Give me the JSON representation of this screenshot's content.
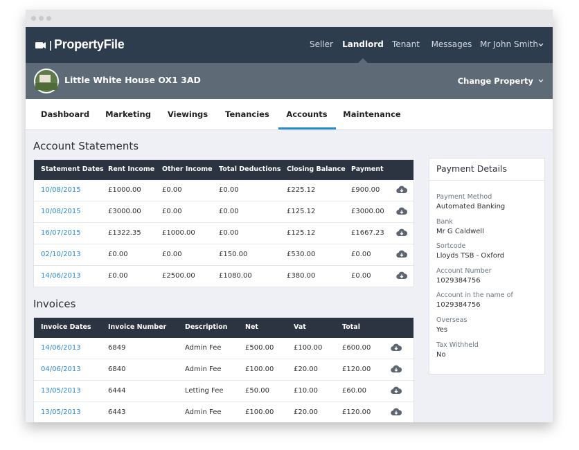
{
  "header": {
    "logo": "PropertyFile",
    "nav": [
      "Seller",
      "Landlord",
      "Tenant",
      "Messages"
    ],
    "user": "Mr John Smith"
  },
  "property": {
    "name": "Little White House OX1 3AD",
    "action": "Change Property"
  },
  "tabs": [
    "Dashboard",
    "Marketing",
    "Viewings",
    "Tenancies",
    "Accounts",
    "Maintenance"
  ],
  "statements": {
    "title": "Account Statements",
    "columns": [
      "Statement Dates",
      "Rent Income",
      "Other Income",
      "Total Deductions",
      "Closing Balance",
      "Payment"
    ],
    "rows": [
      [
        "10/08/2015",
        "£1000.00",
        "£0.00",
        "£0.00",
        "£225.12",
        "£900.00"
      ],
      [
        "10/08/2015",
        "£3000.00",
        "£0.00",
        "£0.00",
        "£125.12",
        "£3000.00"
      ],
      [
        "16/07/2015",
        "£1322.35",
        "£1000.00",
        "£0.00",
        "£125.12",
        "£1667.23"
      ],
      [
        "02/10/2013",
        "£0.00",
        "£0.00",
        "£150.00",
        "£530.00",
        "£0.00"
      ],
      [
        "14/06/2013",
        "£0.00",
        "£2500.00",
        "£1080.00",
        "£380.00",
        "£0.00"
      ]
    ]
  },
  "invoices": {
    "title": "Invoices",
    "columns": [
      "Invoice Dates",
      "Invoice Number",
      "Description",
      "Net",
      "Vat",
      "Total"
    ],
    "rows": [
      [
        "14/06/2013",
        "6849",
        "Admin Fee",
        "£500.00",
        "£100.00",
        "£600.00"
      ],
      [
        "04/06/2013",
        "6840",
        "Admin Fee",
        "£100.00",
        "£20.00",
        "£120.00"
      ],
      [
        "13/05/2013",
        "6444",
        "Letting Fee",
        "£50.00",
        "£10.00",
        "£60.00"
      ],
      [
        "13/05/2013",
        "6443",
        "Admin Fee",
        "£100.00",
        "£20.00",
        "£120.00"
      ]
    ]
  },
  "payment_details": {
    "title": "Payment Details",
    "fields": [
      {
        "label": "Payment Method",
        "value": "Automated Banking"
      },
      {
        "label": "Bank",
        "value": "Mr G Caldwell"
      },
      {
        "label": "Sortcode",
        "value": "Lloyds TSB - Oxford"
      },
      {
        "label": "Account Number",
        "value": "1029384756"
      },
      {
        "label": "Account in the name of",
        "value": "1029384756"
      },
      {
        "label": "Overseas",
        "value": "Yes"
      },
      {
        "label": "Tax Withheld",
        "value": "No"
      }
    ]
  }
}
